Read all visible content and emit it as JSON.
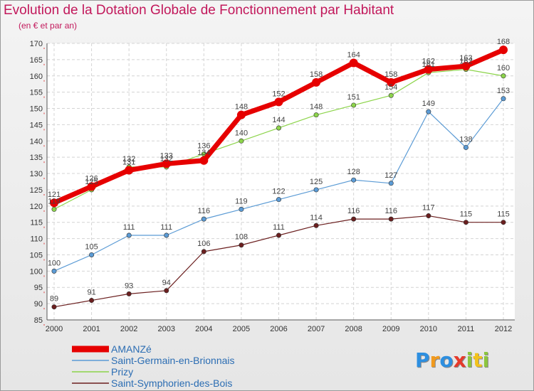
{
  "header": {
    "title": "Evolution de la Dotation Globale de Fonctionnement par Habitant",
    "subtitle": "(en € et par an)"
  },
  "chart_data": {
    "type": "line",
    "title": "Evolution de la Dotation Globale de Fonctionnement par Habitant",
    "subtitle": "(en € et par an)",
    "xlabel": "",
    "ylabel": "",
    "x": [
      "2000",
      "2001",
      "2002",
      "2003",
      "2004",
      "2005",
      "2006",
      "2007",
      "2008",
      "2009",
      "2010",
      "2011",
      "2012"
    ],
    "ylim": [
      85,
      170
    ],
    "yticks": [
      85,
      90,
      95,
      100,
      105,
      110,
      115,
      120,
      125,
      130,
      135,
      140,
      145,
      150,
      155,
      160,
      165,
      170
    ],
    "grid": true,
    "legend_position": "bottom-left",
    "series": [
      {
        "name": "AMANZé",
        "color": "#e60000",
        "values": [
          121,
          126,
          131,
          133,
          134,
          148,
          152,
          158,
          164,
          158,
          162,
          163,
          168
        ],
        "labels": [
          "121",
          "126",
          "131",
          "133",
          "134",
          "148",
          "152",
          "158",
          "164",
          "158",
          "162",
          "163",
          "168"
        ]
      },
      {
        "name": "Saint-Germain-en-Brionnais",
        "color": "#5b9bd5",
        "values": [
          100,
          105,
          111,
          111,
          116,
          119,
          122,
          125,
          128,
          127,
          149,
          138,
          153
        ],
        "labels": [
          "100",
          "105",
          "111",
          "111",
          "116",
          "119",
          "122",
          "125",
          "128",
          "127",
          "149",
          "138",
          "153"
        ]
      },
      {
        "name": "Prizy",
        "color": "#8cd44a",
        "values": [
          119,
          125,
          132,
          132,
          136,
          140,
          144,
          148,
          151,
          154,
          161,
          162,
          160
        ],
        "labels": [
          "119",
          "125",
          "132",
          "132",
          "136",
          "140",
          "144",
          "148",
          "151",
          "154",
          "161",
          "162",
          "160"
        ]
      },
      {
        "name": "Saint-Symphorien-des-Bois",
        "color": "#6b1f1f",
        "values": [
          89,
          91,
          93,
          94,
          106,
          108,
          111,
          114,
          116,
          116,
          117,
          115,
          115
        ],
        "labels": [
          "89",
          "91",
          "93",
          "94",
          "106",
          "108",
          "111",
          "114",
          "116",
          "116",
          "117",
          "115",
          "115"
        ]
      }
    ]
  },
  "legend": {
    "items": [
      {
        "label": "AMANZé",
        "color": "#e60000"
      },
      {
        "label": "Saint-Germain-en-Brionnais",
        "color": "#5b9bd5"
      },
      {
        "label": "Prizy",
        "color": "#8cd44a"
      },
      {
        "label": "Saint-Symphorien-des-Bois",
        "color": "#6b1f1f"
      }
    ]
  },
  "logo": {
    "letters": [
      "P",
      "r",
      "o",
      "x",
      "i",
      "t",
      "i"
    ],
    "colors": [
      "#2d8fe0",
      "#f29a1d",
      "#2d8fe0",
      "#e63a2b",
      "#8cc63f",
      "#f2c21d",
      "#8cc63f"
    ]
  }
}
